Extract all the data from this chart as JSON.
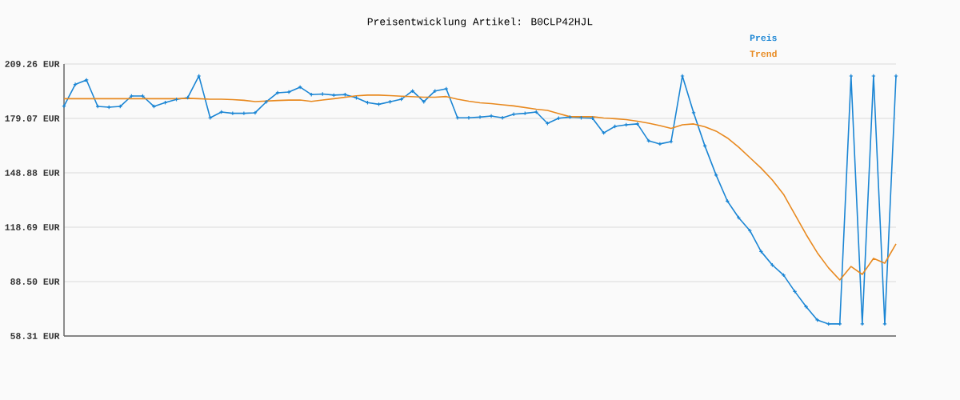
{
  "chart_data": {
    "type": "line",
    "title": "Preisentwicklung Artikel: B0CLP42HJL",
    "categories": [
      null,
      null,
      null,
      null,
      null,
      null,
      null,
      null,
      null,
      null,
      null,
      null,
      null,
      null,
      null,
      null,
      null,
      null,
      null,
      null,
      null,
      null,
      null,
      null,
      null,
      null,
      null,
      null,
      null,
      null,
      null,
      null,
      null,
      null,
      null,
      null,
      null,
      null,
      null,
      null,
      null,
      null,
      null,
      null,
      null,
      null,
      null,
      null,
      null,
      null,
      null,
      null,
      null,
      null,
      null,
      null,
      null,
      null,
      null,
      null,
      null,
      null,
      null,
      null,
      null,
      null,
      null,
      null,
      null,
      null,
      null,
      null,
      null,
      null,
      null
    ],
    "series": [
      {
        "name": "Preis",
        "color": "#1a85d4",
        "marker": "cross",
        "values": [
          185.9,
          197.9,
          200.4,
          185.7,
          185.3,
          185.7,
          191.5,
          191.5,
          185.7,
          187.8,
          189.6,
          190.6,
          202.6,
          179.4,
          182.6,
          181.9,
          181.9,
          182.2,
          188.3,
          193.3,
          193.7,
          196.4,
          192.3,
          192.6,
          192.0,
          192.3,
          190.5,
          187.8,
          186.9,
          188.3,
          189.7,
          194.3,
          188.3,
          194.3,
          195.5,
          179.4,
          179.4,
          179.8,
          180.4,
          179.4,
          181.4,
          181.9,
          182.6,
          176.3,
          179.2,
          179.8,
          179.4,
          179.2,
          171.0,
          174.6,
          175.5,
          176.0,
          166.6,
          164.9,
          166.2,
          202.6,
          182.2,
          163.8,
          147.6,
          133.2,
          124.0,
          116.8,
          105.2,
          97.7,
          92.1,
          83.0,
          74.6,
          67.2,
          65.0,
          65.0,
          202.6,
          65.0,
          202.6,
          65.0,
          202.6
        ]
      },
      {
        "name": "Trend",
        "color": "#e8891f",
        "values": [
          190.0,
          190.0,
          190.0,
          190.0,
          190.0,
          190.0,
          190.0,
          190.0,
          190.0,
          190.0,
          190.0,
          190.2,
          190.0,
          189.7,
          189.7,
          189.5,
          189.1,
          188.4,
          188.7,
          189.0,
          189.2,
          189.3,
          188.5,
          189.3,
          190.0,
          190.8,
          191.6,
          192.0,
          192.0,
          191.7,
          191.4,
          191.1,
          190.8,
          190.8,
          191.2,
          189.7,
          188.6,
          187.7,
          187.3,
          186.6,
          186.0,
          185.1,
          184.2,
          183.5,
          181.7,
          180.0,
          180.0,
          180.0,
          179.3,
          178.9,
          178.4,
          177.5,
          176.4,
          175.1,
          173.5,
          175.5,
          176.0,
          174.4,
          172.0,
          168.2,
          163.1,
          157.3,
          151.5,
          144.9,
          136.9,
          125.8,
          114.7,
          104.5,
          96.1,
          89.4,
          96.9,
          92.5,
          101.4,
          98.7,
          109.4
        ]
      }
    ],
    "ylim": [
      58.31,
      209.26
    ],
    "yticks": [
      {
        "value": 58.31,
        "label": "58.31 EUR"
      },
      {
        "value": 88.5,
        "label": "88.50 EUR"
      },
      {
        "value": 118.69,
        "label": "118.69 EUR"
      },
      {
        "value": 148.88,
        "label": "148.88 EUR"
      },
      {
        "value": 179.07,
        "label": "179.07 EUR"
      },
      {
        "value": 209.26,
        "label": "209.26 EUR"
      }
    ],
    "grid": "y",
    "legend": "top right",
    "tick_labels": "y",
    "line_style": "solid"
  }
}
